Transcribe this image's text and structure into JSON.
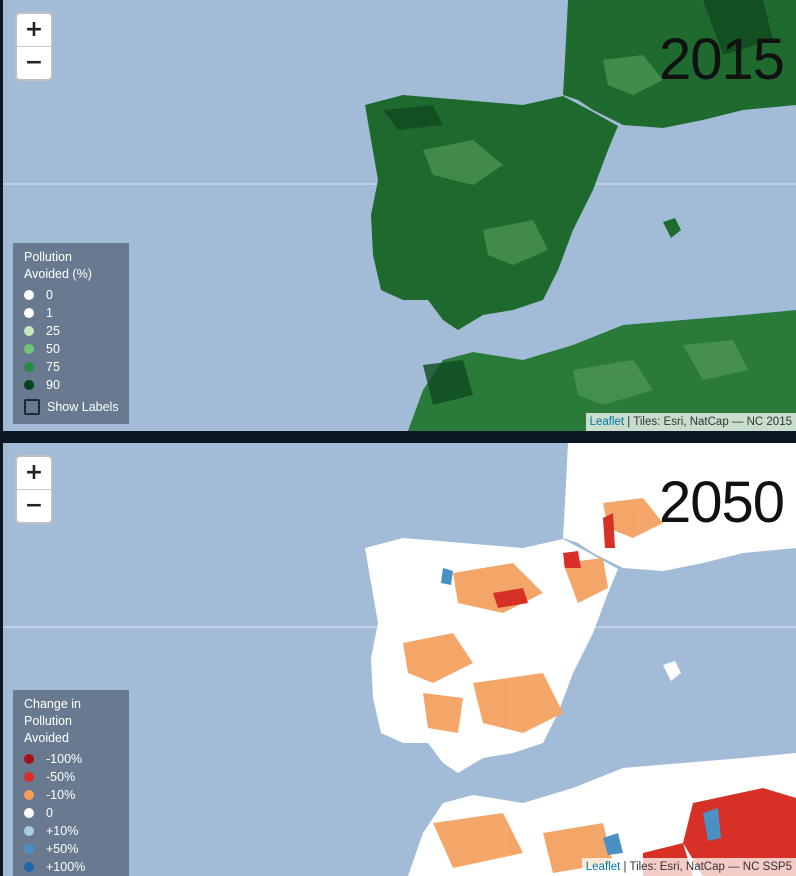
{
  "top_map": {
    "year": "2015",
    "zoom_in": "+",
    "zoom_out": "−",
    "legend": {
      "title": "Pollution Avoided (%)",
      "items": [
        {
          "label": "0",
          "color": "#ffffff"
        },
        {
          "label": "1",
          "color": "#ffffff"
        },
        {
          "label": "25",
          "color": "#c7e9c0"
        },
        {
          "label": "50",
          "color": "#74c476"
        },
        {
          "label": "75",
          "color": "#238b45"
        },
        {
          "label": "90",
          "color": "#00441b"
        }
      ],
      "show_labels": "Show Labels"
    },
    "attribution": {
      "link": "Leaflet",
      "text": " | Tiles: Esri, NatCap — NC 2015"
    }
  },
  "bottom_map": {
    "year": "2050",
    "zoom_in": "+",
    "zoom_out": "−",
    "legend": {
      "title": "Change in Pollution Avoided",
      "items": [
        {
          "label": "-100%",
          "color": "#a50f15"
        },
        {
          "label": "-50%",
          "color": "#de2d26"
        },
        {
          "label": "-10%",
          "color": "#fc9d54"
        },
        {
          "label": "0",
          "color": "#ffffff"
        },
        {
          "label": "+10%",
          "color": "#a6cee3"
        },
        {
          "label": "+50%",
          "color": "#4a90c2"
        },
        {
          "label": "+100%",
          "color": "#2166ac"
        }
      ]
    },
    "attribution": {
      "link": "Leaflet",
      "text": " | Tiles: Esri, NatCap — NC SSP5"
    }
  },
  "colors": {
    "water": "#a2bcd8",
    "land_green": "#1f6b2f",
    "land_white": "#ffffff",
    "change_orange": "#f4a261",
    "change_red": "#d73027"
  }
}
